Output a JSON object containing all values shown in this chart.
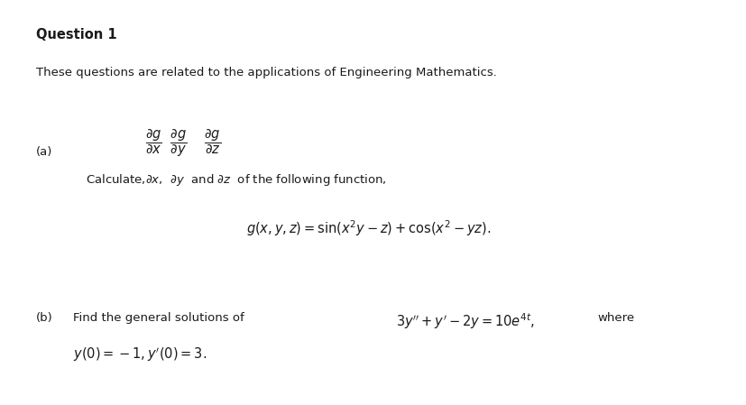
{
  "bg_color": "#ffffff",
  "title": "Question 1",
  "subtitle": "These questions are related to the applications of Engineering Mathematics.",
  "part_a_label": "(a)",
  "part_a_function": "$g(x, y, z) = \\sin(x^2y - z) + \\cos(x^2 - yz).$",
  "part_b_label": "(b)",
  "text_color": "#1a1a1a",
  "font_size_title": 10.5,
  "font_size_body": 9.5,
  "font_size_math": 10.5,
  "fig_width": 8.28,
  "fig_height": 4.49,
  "dpi": 100
}
